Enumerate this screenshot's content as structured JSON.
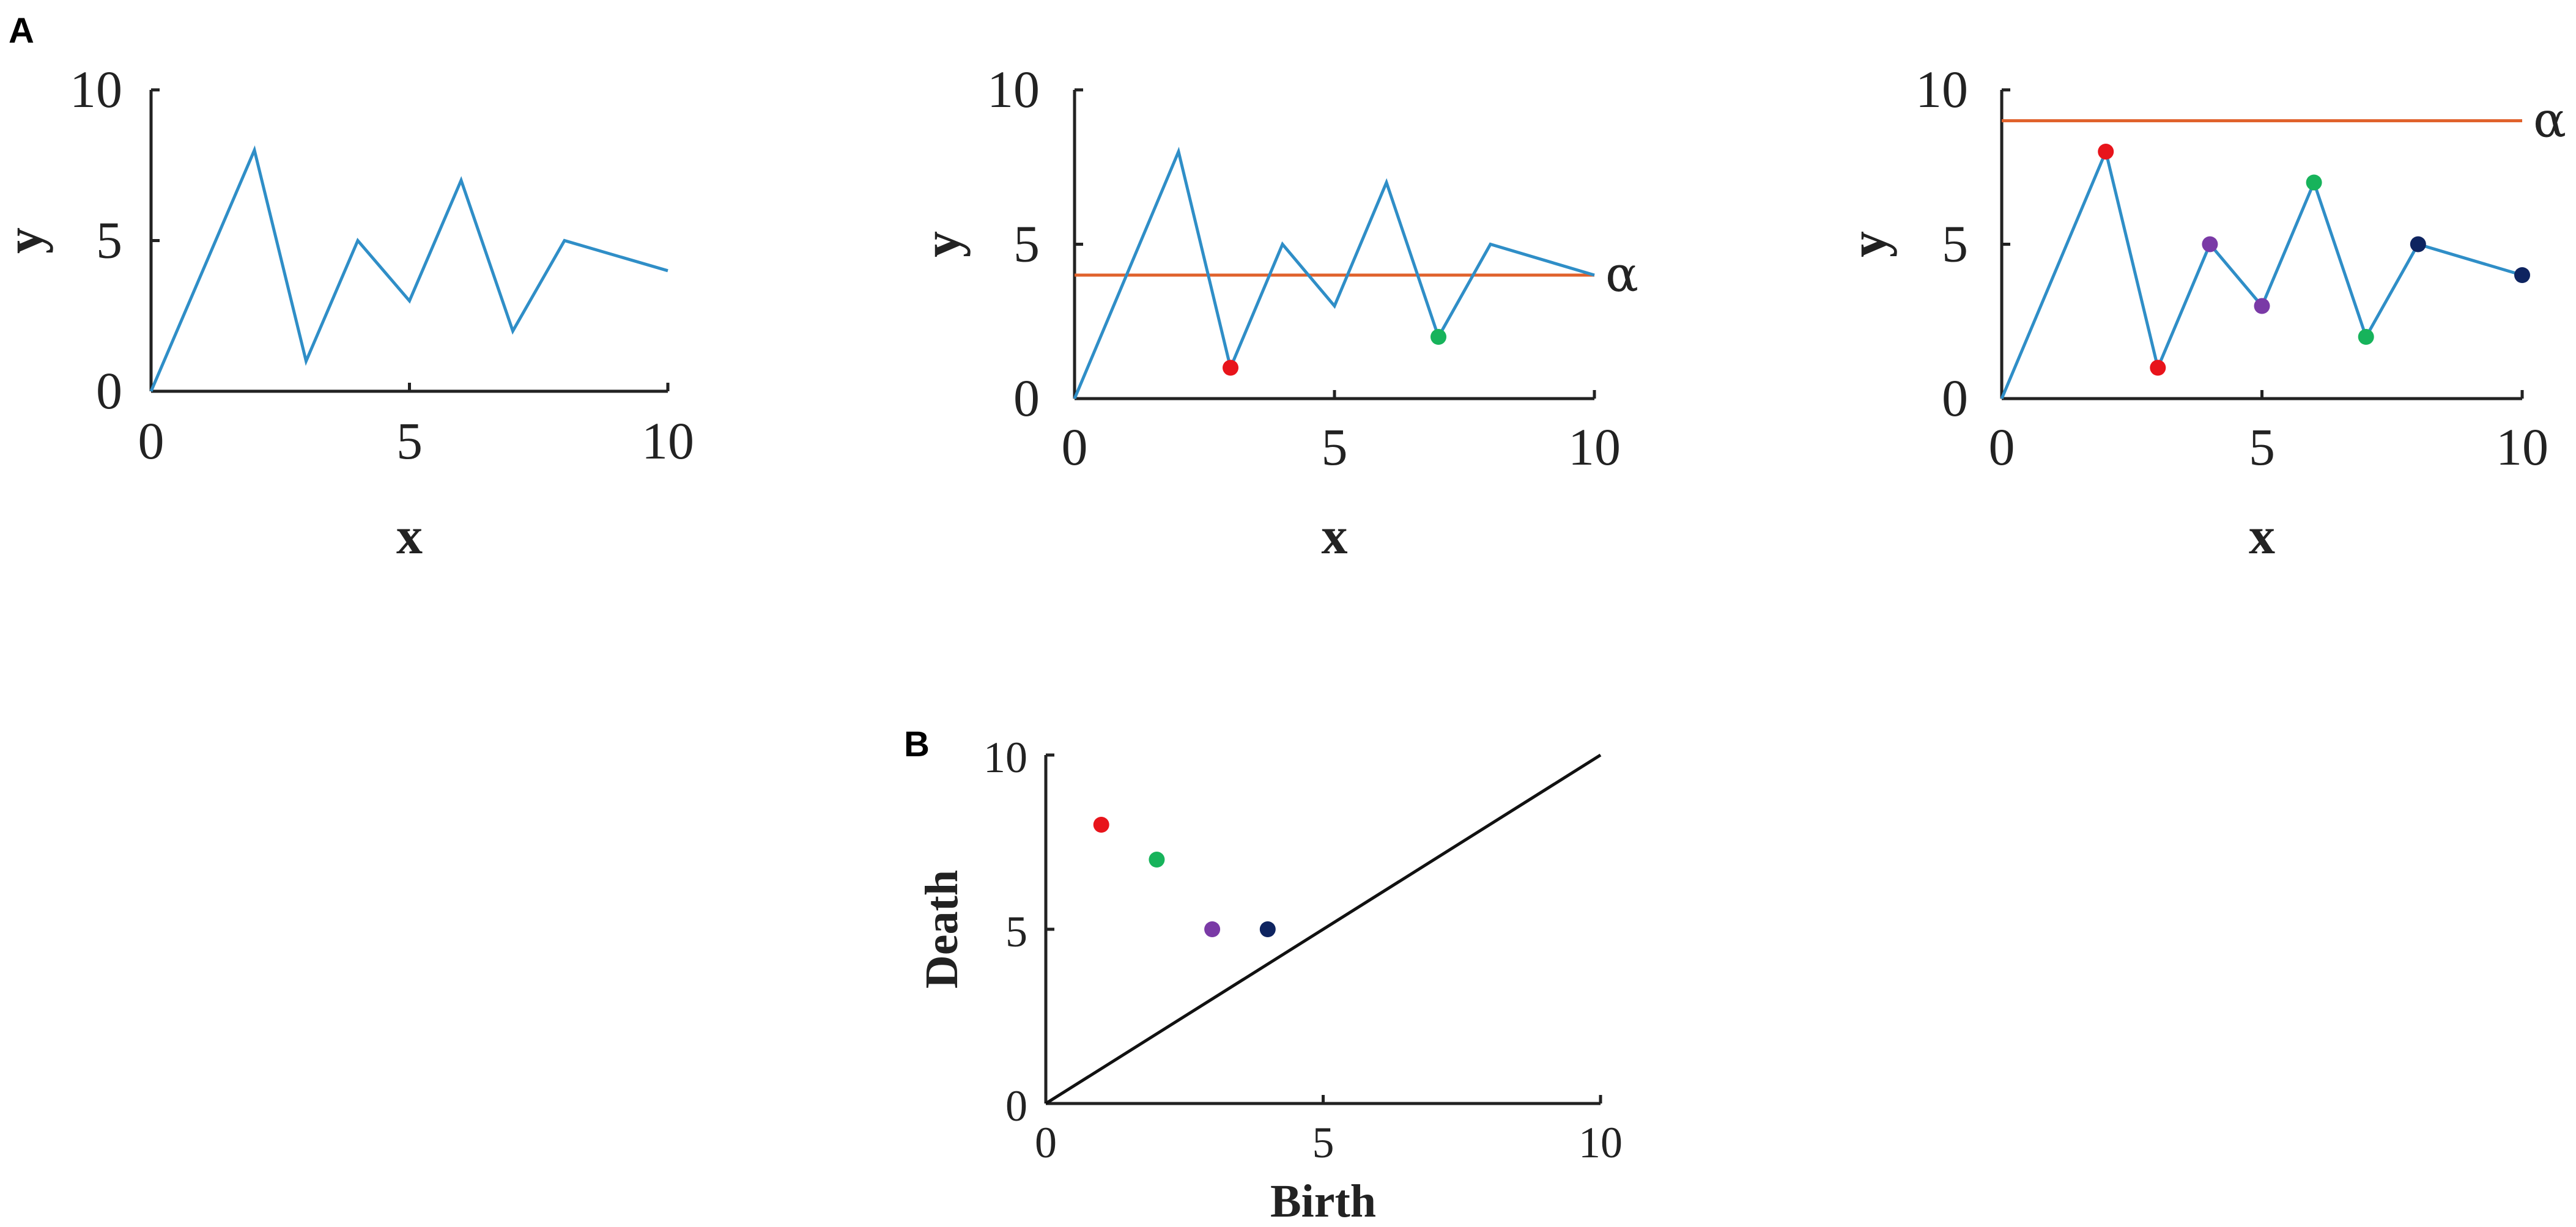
{
  "panels": {
    "a_label": "A",
    "b_label": "B"
  },
  "colors": {
    "series": "#2f8ec7",
    "threshold": "#e0622c",
    "axis": "#222222",
    "diagonal": "#111111",
    "red": "#e8141b",
    "green": "#17b35b",
    "purple": "#7a3aa6",
    "navy": "#0e2460"
  },
  "chart_data": [
    {
      "id": "a1",
      "type": "line",
      "xlabel": "x",
      "ylabel": "y",
      "xlim": [
        0,
        10
      ],
      "ylim": [
        0,
        10
      ],
      "xticks": [
        0,
        5,
        10
      ],
      "yticks": [
        0,
        5,
        10
      ],
      "x": [
        0,
        2,
        3,
        4,
        5,
        6,
        7,
        8,
        10
      ],
      "y": [
        0,
        8,
        1,
        5,
        3,
        7,
        2,
        5,
        4
      ],
      "threshold": null,
      "threshold_label": "",
      "points": []
    },
    {
      "id": "a2",
      "type": "line",
      "xlabel": "x",
      "ylabel": "y",
      "xlim": [
        0,
        10
      ],
      "ylim": [
        0,
        10
      ],
      "xticks": [
        0,
        5,
        10
      ],
      "yticks": [
        0,
        5,
        10
      ],
      "x": [
        0,
        2,
        3,
        4,
        5,
        6,
        7,
        8,
        10
      ],
      "y": [
        0,
        8,
        1,
        5,
        3,
        7,
        2,
        5,
        4
      ],
      "threshold": 4,
      "threshold_label": "α",
      "points": [
        {
          "x": 3,
          "y": 1,
          "color": "red"
        },
        {
          "x": 7,
          "y": 2,
          "color": "green"
        }
      ]
    },
    {
      "id": "a3",
      "type": "line",
      "xlabel": "x",
      "ylabel": "y",
      "xlim": [
        0,
        10
      ],
      "ylim": [
        0,
        10
      ],
      "xticks": [
        0,
        5,
        10
      ],
      "yticks": [
        0,
        5,
        10
      ],
      "x": [
        0,
        2,
        3,
        4,
        5,
        6,
        7,
        8,
        10
      ],
      "y": [
        0,
        8,
        1,
        5,
        3,
        7,
        2,
        5,
        4
      ],
      "threshold": 9,
      "threshold_label": "α",
      "points": [
        {
          "x": 2,
          "y": 8,
          "color": "red"
        },
        {
          "x": 3,
          "y": 1,
          "color": "red"
        },
        {
          "x": 4,
          "y": 5,
          "color": "purple"
        },
        {
          "x": 5,
          "y": 3,
          "color": "purple"
        },
        {
          "x": 6,
          "y": 7,
          "color": "green"
        },
        {
          "x": 7,
          "y": 2,
          "color": "green"
        },
        {
          "x": 8,
          "y": 5,
          "color": "navy"
        },
        {
          "x": 10,
          "y": 4,
          "color": "navy"
        }
      ]
    },
    {
      "id": "b",
      "type": "scatter",
      "xlabel": "Birth",
      "ylabel": "Death",
      "xlim": [
        0,
        10
      ],
      "ylim": [
        0,
        10
      ],
      "xticks": [
        0,
        5,
        10
      ],
      "yticks": [
        0,
        5,
        10
      ],
      "diagonal": true,
      "points": [
        {
          "x": 1,
          "y": 8,
          "color": "red"
        },
        {
          "x": 2,
          "y": 7,
          "color": "green"
        },
        {
          "x": 3,
          "y": 5,
          "color": "purple"
        },
        {
          "x": 4,
          "y": 5,
          "color": "navy"
        }
      ]
    }
  ]
}
